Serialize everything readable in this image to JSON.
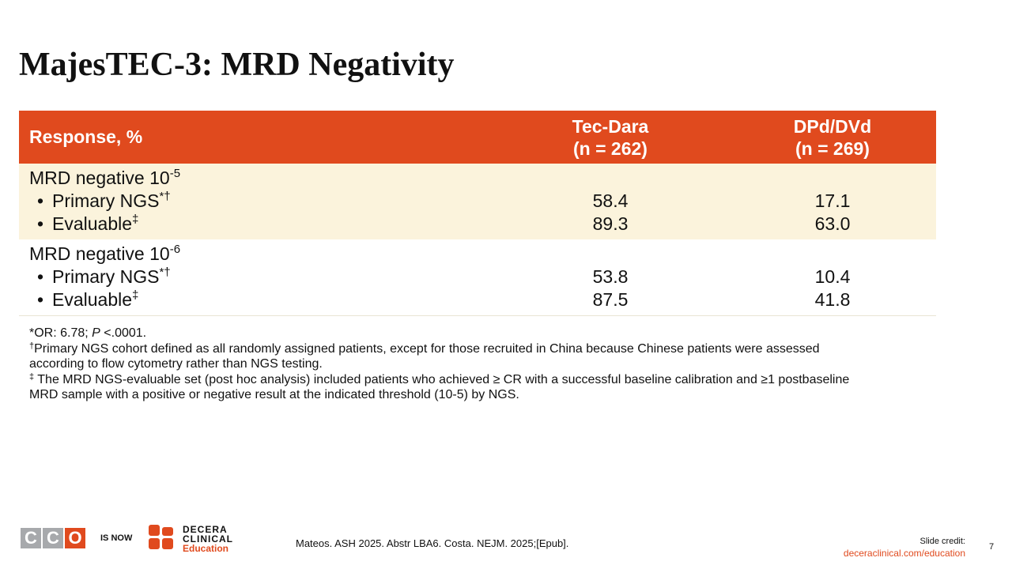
{
  "title": "MajesTEC-3: MRD Negativity",
  "table": {
    "header": {
      "response": "Response, %",
      "col1": [
        "Tec-Dara",
        "(n = 262)"
      ],
      "col2": [
        "DPd/DVd",
        "(n = 269)"
      ]
    },
    "groups": [
      {
        "label": "MRD negative 10",
        "exponent": "-5",
        "rows": [
          {
            "label": "Primary NGS",
            "mark": "*†",
            "values": [
              "58.4",
              "17.1"
            ]
          },
          {
            "label": "Evaluable",
            "mark": "‡",
            "values": [
              "89.3",
              "63.0"
            ]
          }
        ]
      },
      {
        "label": "MRD negative 10",
        "exponent": "-6",
        "rows": [
          {
            "label": "Primary NGS",
            "mark": "*†",
            "values": [
              "53.8",
              "10.4"
            ]
          },
          {
            "label": "Evaluable",
            "mark": "‡",
            "values": [
              "87.5",
              "41.8"
            ]
          }
        ]
      }
    ]
  },
  "footnotes": [
    {
      "parts": [
        "*OR: 6.78; ",
        "P",
        " <.0001."
      ]
    },
    {
      "mark": "†",
      "text": "Primary NGS cohort defined as all randomly assigned patients, except for those recruited in China because Chinese patients were assessed according to flow cytometry rather than NGS testing."
    },
    {
      "mark": "‡",
      "text": " The MRD NGS-evaluable set (post hoc analysis) included patients who achieved ≥ CR with a successful baseline calibration and ≥1 postbaseline MRD sample with a positive or negative result at the indicated threshold (10-5) by NGS."
    }
  ],
  "footer": {
    "logo": {
      "letters": [
        "C",
        "C",
        "O"
      ],
      "is_now": "IS NOW",
      "brand": [
        "DECERA",
        "CLINICAL",
        "Education"
      ]
    },
    "citation": "Mateos. ASH 2025. Abstr LBA6. Costa. NEJM. 2025;[Epub].",
    "credit_label": "Slide credit:",
    "credit_link": "deceraclinical.com/education",
    "page": "7"
  }
}
